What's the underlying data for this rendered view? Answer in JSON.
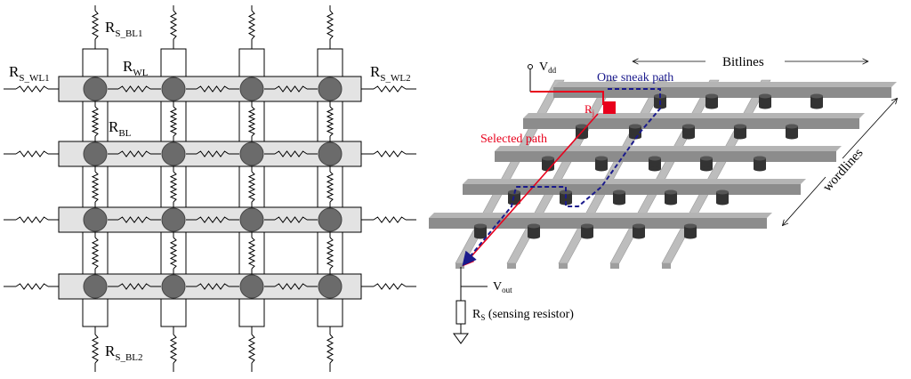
{
  "left_panel": {
    "labels": {
      "r_s_bl1": {
        "main": "R",
        "sub": "S_BL1"
      },
      "r_s_bl2": {
        "main": "R",
        "sub": "S_BL2"
      },
      "r_s_wl1": {
        "main": "R",
        "sub": "S_WL1"
      },
      "r_s_wl2": {
        "main": "R",
        "sub": "S_WL2"
      },
      "r_wl": {
        "main": "R",
        "sub": "WL"
      },
      "r_bl": {
        "main": "R",
        "sub": "BL"
      }
    },
    "rows": 4,
    "cols": 4
  },
  "right_panel": {
    "vdd": {
      "main": "V",
      "sub": "dd"
    },
    "vout": {
      "main": "V",
      "sub": "out"
    },
    "rj": {
      "main": "R",
      "sub": "j"
    },
    "rs": {
      "main": "R",
      "sub": "S",
      "rest": " (sensing resistor)"
    },
    "bitlines_label": "Bitlines",
    "wordlines_label": "wordlines",
    "sneak_path_label": "One sneak path",
    "selected_path_label": "Selected path",
    "colors": {
      "sneak": "#1a1a8c",
      "selected": "#e8001c",
      "bar": "#a8a8a8",
      "bar_dark": "#8c8c8c",
      "cell": "#333333"
    }
  }
}
